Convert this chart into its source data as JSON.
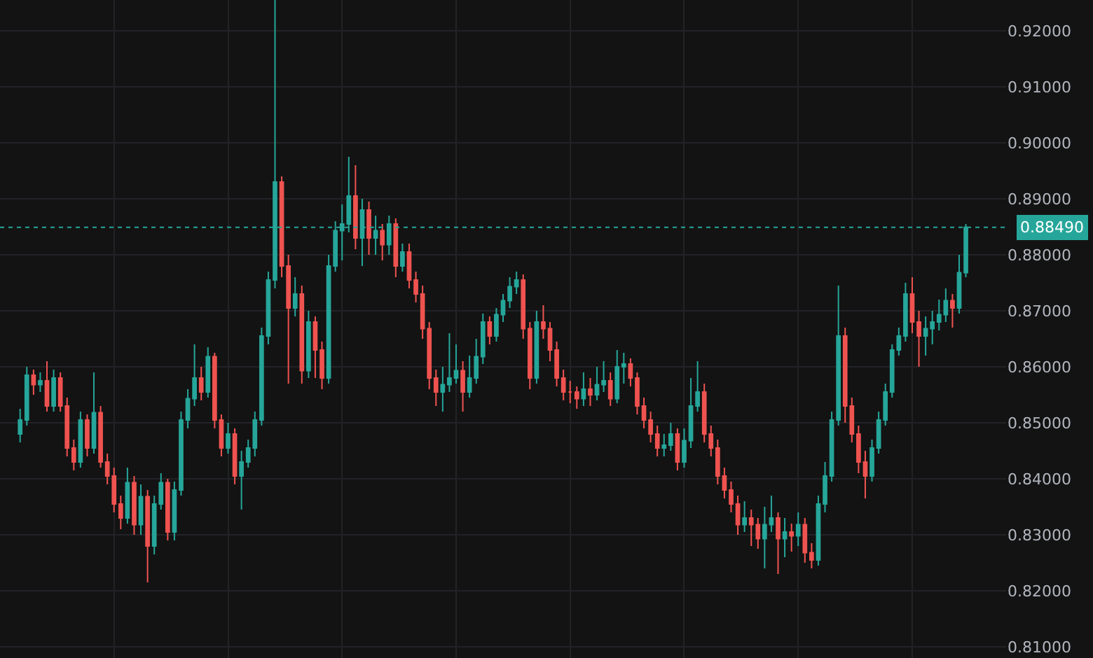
{
  "chart_data": {
    "type": "candlestick",
    "categories": [
      null,
      null,
      null,
      null,
      null,
      null,
      null,
      null,
      null,
      null,
      null,
      null,
      null,
      null,
      null,
      null,
      null,
      null,
      null,
      null,
      null,
      null,
      null,
      null,
      null,
      null,
      null,
      null,
      null,
      null,
      null,
      null,
      null,
      null,
      null,
      null,
      null,
      null,
      null,
      null,
      null,
      null,
      null,
      null,
      null,
      null,
      null,
      null,
      null,
      null,
      null,
      null,
      null,
      null,
      null,
      null,
      null,
      null,
      null,
      null,
      null,
      null,
      null,
      null,
      null,
      null,
      null,
      null,
      null,
      null,
      null,
      null,
      null,
      null,
      null,
      null,
      null,
      null,
      null,
      null,
      null,
      null,
      null,
      null,
      null,
      null,
      null,
      null,
      null,
      null,
      null,
      null,
      null,
      null,
      null,
      null,
      null,
      null,
      null,
      null,
      null,
      null,
      null,
      null,
      null,
      null,
      null,
      null,
      null,
      null,
      null,
      null,
      null,
      null,
      null,
      null,
      null,
      null,
      null,
      null,
      null,
      null,
      null,
      null,
      null,
      null,
      null,
      null,
      null,
      null,
      null,
      null,
      null,
      null,
      null,
      null,
      null,
      null,
      null,
      null,
      null,
      null
    ],
    "ohlc": [
      [
        0.848,
        0.8525,
        0.8465,
        0.8505
      ],
      [
        0.8505,
        0.86,
        0.8495,
        0.8585
      ],
      [
        0.8585,
        0.8595,
        0.855,
        0.8568
      ],
      [
        0.8568,
        0.859,
        0.8555,
        0.8575
      ],
      [
        0.8575,
        0.861,
        0.852,
        0.853
      ],
      [
        0.853,
        0.8595,
        0.852,
        0.858
      ],
      [
        0.858,
        0.859,
        0.852,
        0.853
      ],
      [
        0.853,
        0.8545,
        0.844,
        0.8455
      ],
      [
        0.8455,
        0.847,
        0.8415,
        0.843
      ],
      [
        0.843,
        0.852,
        0.842,
        0.8505
      ],
      [
        0.8505,
        0.8515,
        0.844,
        0.8455
      ],
      [
        0.8455,
        0.859,
        0.8445,
        0.8518
      ],
      [
        0.8518,
        0.853,
        0.842,
        0.843
      ],
      [
        0.843,
        0.8445,
        0.839,
        0.8405
      ],
      [
        0.8405,
        0.842,
        0.834,
        0.8355
      ],
      [
        0.8355,
        0.837,
        0.831,
        0.833
      ],
      [
        0.833,
        0.842,
        0.832,
        0.8393
      ],
      [
        0.8393,
        0.8405,
        0.83,
        0.8318
      ],
      [
        0.8318,
        0.839,
        0.83,
        0.8368
      ],
      [
        0.8368,
        0.838,
        0.8215,
        0.828
      ],
      [
        0.828,
        0.837,
        0.8265,
        0.8355
      ],
      [
        0.8355,
        0.841,
        0.8345,
        0.8393
      ],
      [
        0.8393,
        0.84,
        0.829,
        0.8305
      ],
      [
        0.8305,
        0.8395,
        0.829,
        0.838
      ],
      [
        0.838,
        0.852,
        0.837,
        0.8505
      ],
      [
        0.8505,
        0.856,
        0.849,
        0.8543
      ],
      [
        0.8543,
        0.864,
        0.853,
        0.858
      ],
      [
        0.858,
        0.86,
        0.854,
        0.8555
      ],
      [
        0.8555,
        0.8635,
        0.8545,
        0.8618
      ],
      [
        0.8618,
        0.8625,
        0.849,
        0.8505
      ],
      [
        0.8505,
        0.8515,
        0.844,
        0.8455
      ],
      [
        0.8455,
        0.85,
        0.8445,
        0.848
      ],
      [
        0.848,
        0.849,
        0.839,
        0.8405
      ],
      [
        0.8405,
        0.845,
        0.8345,
        0.843
      ],
      [
        0.843,
        0.847,
        0.842,
        0.8455
      ],
      [
        0.8455,
        0.852,
        0.844,
        0.8505
      ],
      [
        0.8505,
        0.867,
        0.8495,
        0.8655
      ],
      [
        0.8655,
        0.877,
        0.864,
        0.8755
      ],
      [
        0.8755,
        0.9255,
        0.874,
        0.893
      ],
      [
        0.893,
        0.894,
        0.876,
        0.878
      ],
      [
        0.878,
        0.88,
        0.857,
        0.8705
      ],
      [
        0.8705,
        0.876,
        0.869,
        0.873
      ],
      [
        0.873,
        0.8745,
        0.857,
        0.8593
      ],
      [
        0.8593,
        0.87,
        0.858,
        0.868
      ],
      [
        0.868,
        0.869,
        0.858,
        0.863
      ],
      [
        0.863,
        0.8645,
        0.856,
        0.858
      ],
      [
        0.858,
        0.88,
        0.857,
        0.878
      ],
      [
        0.878,
        0.886,
        0.877,
        0.8843
      ],
      [
        0.8843,
        0.889,
        0.879,
        0.8855
      ],
      [
        0.8855,
        0.8975,
        0.884,
        0.8905
      ],
      [
        0.8905,
        0.896,
        0.881,
        0.883
      ],
      [
        0.883,
        0.89,
        0.878,
        0.888
      ],
      [
        0.888,
        0.8895,
        0.88,
        0.883
      ],
      [
        0.883,
        0.887,
        0.88,
        0.8843
      ],
      [
        0.8843,
        0.8855,
        0.879,
        0.8818
      ],
      [
        0.8818,
        0.887,
        0.88,
        0.8855
      ],
      [
        0.8855,
        0.8865,
        0.876,
        0.878
      ],
      [
        0.878,
        0.882,
        0.877,
        0.8805
      ],
      [
        0.8805,
        0.882,
        0.874,
        0.8755
      ],
      [
        0.8755,
        0.877,
        0.8715,
        0.873
      ],
      [
        0.873,
        0.8745,
        0.865,
        0.8668
      ],
      [
        0.8668,
        0.868,
        0.856,
        0.858
      ],
      [
        0.858,
        0.8595,
        0.853,
        0.8555
      ],
      [
        0.8555,
        0.86,
        0.852,
        0.8568
      ],
      [
        0.8568,
        0.866,
        0.8555,
        0.858
      ],
      [
        0.858,
        0.864,
        0.857,
        0.8593
      ],
      [
        0.8593,
        0.861,
        0.852,
        0.8555
      ],
      [
        0.8555,
        0.862,
        0.8545,
        0.858
      ],
      [
        0.858,
        0.865,
        0.857,
        0.8618
      ],
      [
        0.8618,
        0.8695,
        0.8605,
        0.868
      ],
      [
        0.868,
        0.869,
        0.864,
        0.8655
      ],
      [
        0.8655,
        0.8705,
        0.8645,
        0.8693
      ],
      [
        0.8693,
        0.873,
        0.868,
        0.8718
      ],
      [
        0.8718,
        0.876,
        0.8705,
        0.8743
      ],
      [
        0.8743,
        0.877,
        0.873,
        0.8755
      ],
      [
        0.8755,
        0.8765,
        0.865,
        0.8668
      ],
      [
        0.8668,
        0.868,
        0.856,
        0.858
      ],
      [
        0.858,
        0.87,
        0.857,
        0.868
      ],
      [
        0.868,
        0.871,
        0.865,
        0.8668
      ],
      [
        0.8668,
        0.868,
        0.861,
        0.863
      ],
      [
        0.863,
        0.8645,
        0.8565,
        0.858
      ],
      [
        0.858,
        0.8595,
        0.854,
        0.8555
      ],
      [
        0.8555,
        0.8575,
        0.8535,
        0.8555
      ],
      [
        0.8555,
        0.8565,
        0.8525,
        0.8543
      ],
      [
        0.8543,
        0.859,
        0.853,
        0.856
      ],
      [
        0.856,
        0.858,
        0.853,
        0.855
      ],
      [
        0.855,
        0.86,
        0.854,
        0.8568
      ],
      [
        0.8568,
        0.861,
        0.8555,
        0.8575
      ],
      [
        0.8575,
        0.859,
        0.853,
        0.8543
      ],
      [
        0.8543,
        0.863,
        0.8535,
        0.86
      ],
      [
        0.86,
        0.8625,
        0.857,
        0.8605
      ],
      [
        0.8605,
        0.8615,
        0.8565,
        0.858
      ],
      [
        0.858,
        0.859,
        0.8515,
        0.853
      ],
      [
        0.853,
        0.8545,
        0.849,
        0.8505
      ],
      [
        0.8505,
        0.852,
        0.8465,
        0.848
      ],
      [
        0.848,
        0.8495,
        0.844,
        0.8455
      ],
      [
        0.8455,
        0.848,
        0.844,
        0.846
      ],
      [
        0.846,
        0.85,
        0.845,
        0.848
      ],
      [
        0.848,
        0.849,
        0.8415,
        0.843
      ],
      [
        0.843,
        0.849,
        0.842,
        0.8468
      ],
      [
        0.8468,
        0.858,
        0.8455,
        0.853
      ],
      [
        0.853,
        0.861,
        0.852,
        0.8555
      ],
      [
        0.8555,
        0.857,
        0.8465,
        0.848
      ],
      [
        0.848,
        0.8495,
        0.844,
        0.8455
      ],
      [
        0.8455,
        0.847,
        0.839,
        0.8405
      ],
      [
        0.8405,
        0.842,
        0.8365,
        0.838
      ],
      [
        0.838,
        0.8395,
        0.834,
        0.8355
      ],
      [
        0.8355,
        0.837,
        0.83,
        0.8318
      ],
      [
        0.8318,
        0.836,
        0.8305,
        0.833
      ],
      [
        0.833,
        0.8345,
        0.828,
        0.8318
      ],
      [
        0.8318,
        0.833,
        0.8275,
        0.8293
      ],
      [
        0.8293,
        0.835,
        0.824,
        0.8318
      ],
      [
        0.8318,
        0.837,
        0.8305,
        0.833
      ],
      [
        0.833,
        0.834,
        0.823,
        0.8293
      ],
      [
        0.8293,
        0.833,
        0.826,
        0.8305
      ],
      [
        0.8305,
        0.832,
        0.827,
        0.8298
      ],
      [
        0.8298,
        0.834,
        0.828,
        0.8318
      ],
      [
        0.8318,
        0.833,
        0.825,
        0.8268
      ],
      [
        0.8268,
        0.8285,
        0.824,
        0.8255
      ],
      [
        0.8255,
        0.837,
        0.8245,
        0.8355
      ],
      [
        0.8355,
        0.843,
        0.834,
        0.8405
      ],
      [
        0.8405,
        0.852,
        0.8395,
        0.8505
      ],
      [
        0.8505,
        0.8745,
        0.8495,
        0.8655
      ],
      [
        0.8655,
        0.867,
        0.85,
        0.853
      ],
      [
        0.853,
        0.8545,
        0.8465,
        0.848
      ],
      [
        0.848,
        0.8495,
        0.841,
        0.843
      ],
      [
        0.843,
        0.845,
        0.8365,
        0.8405
      ],
      [
        0.8405,
        0.847,
        0.8395,
        0.8455
      ],
      [
        0.8455,
        0.852,
        0.8445,
        0.8505
      ],
      [
        0.8505,
        0.857,
        0.8495,
        0.8555
      ],
      [
        0.8555,
        0.864,
        0.8545,
        0.863
      ],
      [
        0.863,
        0.867,
        0.862,
        0.8655
      ],
      [
        0.8655,
        0.875,
        0.8645,
        0.873
      ],
      [
        0.873,
        0.876,
        0.866,
        0.868
      ],
      [
        0.868,
        0.87,
        0.86,
        0.8655
      ],
      [
        0.8655,
        0.869,
        0.862,
        0.8668
      ],
      [
        0.8668,
        0.87,
        0.864,
        0.868
      ],
      [
        0.868,
        0.872,
        0.8665,
        0.8693
      ],
      [
        0.8693,
        0.874,
        0.868,
        0.8718
      ],
      [
        0.8718,
        0.873,
        0.867,
        0.8705
      ],
      [
        0.8705,
        0.88,
        0.8695,
        0.8768
      ],
      [
        0.8768,
        0.8855,
        0.876,
        0.8849
      ]
    ],
    "ylim": [
      0.808,
      0.9255
    ],
    "yticks": [
      {
        "value": 0.81,
        "label": "0.81000"
      },
      {
        "value": 0.82,
        "label": "0.82000"
      },
      {
        "value": 0.83,
        "label": "0.83000"
      },
      {
        "value": 0.84,
        "label": "0.84000"
      },
      {
        "value": 0.85,
        "label": "0.85000"
      },
      {
        "value": 0.86,
        "label": "0.86000"
      },
      {
        "value": 0.87,
        "label": "0.87000"
      },
      {
        "value": 0.88,
        "label": "0.88000"
      },
      {
        "value": 0.89,
        "label": "0.89000"
      },
      {
        "value": 0.9,
        "label": "0.90000"
      },
      {
        "value": 0.91,
        "label": "0.91000"
      },
      {
        "value": 0.92,
        "label": "0.92000"
      }
    ],
    "tick_labels": "y",
    "grid": true,
    "ref_lines": [
      {
        "axis": "y",
        "value": 0.8849,
        "label": "0.88490",
        "color": "#26a69a",
        "line_style": "dotted"
      }
    ]
  }
}
